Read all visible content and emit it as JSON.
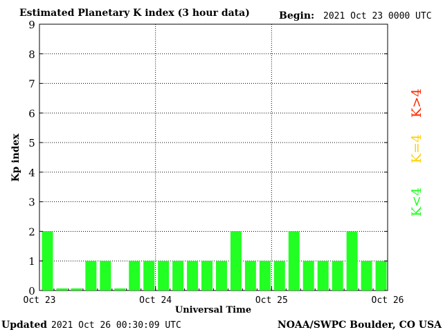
{
  "chart_data": {
    "type": "bar",
    "title": "Estimated Planetary K index (3 hour data)",
    "begin_label": "Begin:",
    "begin_value": "2021 Oct 23 0000 UTC",
    "xlabel": "Universal Time",
    "ylabel": "Kp index",
    "ylim": [
      0,
      9
    ],
    "yticks": [
      "0",
      "1",
      "2",
      "3",
      "4",
      "5",
      "6",
      "7",
      "8",
      "9"
    ],
    "xticks": [
      "Oct 23",
      "Oct 24",
      "Oct 25",
      "Oct 26"
    ],
    "grid": "dotted at each day and integer Kp",
    "interval_hours": 3,
    "values": [
      2,
      0.07,
      0.07,
      1,
      1,
      0.07,
      1,
      1,
      1,
      1,
      1,
      1,
      1,
      2,
      1,
      1,
      1,
      2,
      1,
      1,
      1,
      2,
      1,
      1
    ],
    "legend": [
      {
        "label": "K<4",
        "color": "#22ff22"
      },
      {
        "label": "K=4",
        "color": "#ffd000"
      },
      {
        "label": "K>4",
        "color": "#ff2a00"
      }
    ],
    "legend_placement": "right, vertical",
    "bar_color": "#22ff22"
  },
  "footer": {
    "updated_label": "Updated",
    "updated_value": "2021 Oct 26 00:30:09 UTC",
    "source": "NOAA/SWPC Boulder, CO USA"
  }
}
